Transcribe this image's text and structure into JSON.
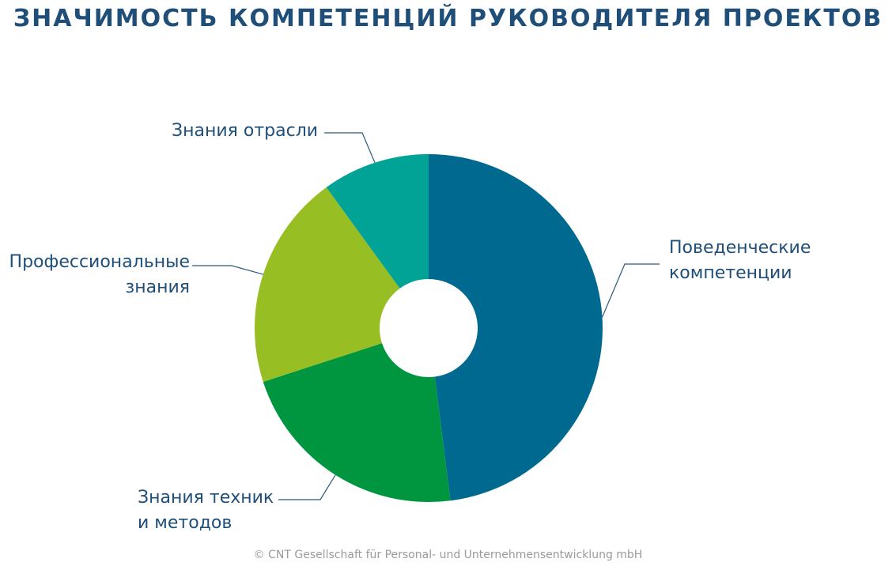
{
  "title": "ЗНАЧИМОСТЬ КОМПЕТЕНЦИЙ РУКОВОДИТЕЛЯ ПРОЕКТОВ",
  "copyright": "© CNT Gesellschaft für Personal- und Unternehmensentwicklung mbH",
  "chart_data": {
    "type": "pie",
    "title": "ЗНАЧИМОСТЬ КОМПЕТЕНЦИЙ РУКОВОДИТЕЛЯ ПРОЕКТОВ",
    "donut": true,
    "categories": [
      "Поведенческие компетенции",
      "Знания техник и методов",
      "Профессиональные знания",
      "Знания отрасли"
    ],
    "values": [
      48,
      22,
      20,
      10
    ],
    "colors": [
      "#00698f",
      "#00963f",
      "#97bf23",
      "#00a396"
    ],
    "label_lines": [
      [
        "Поведенческие",
        "компетенции"
      ],
      [
        "Знания техник",
        "и методов"
      ],
      [
        "Профессиональные",
        "знания"
      ],
      [
        "Знания отрасли"
      ]
    ],
    "legend": "none"
  }
}
